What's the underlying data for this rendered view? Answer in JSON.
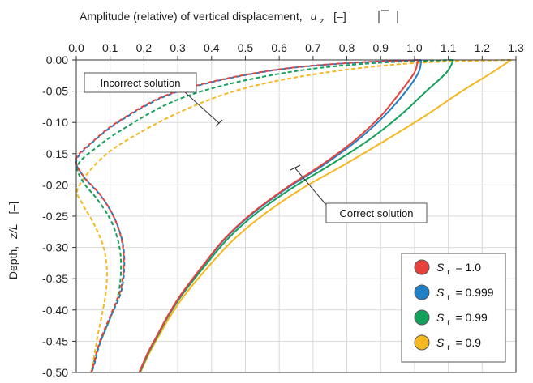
{
  "chart_data": {
    "type": "line",
    "title": "",
    "xlabel": "Amplitude (relative) of vertical displacement, |ū_z| [–]",
    "xlabel_parts": {
      "text": "Amplitude (relative) of vertical displacement,",
      "symbol": "u",
      "subscript": "z",
      "unit": "[–]"
    },
    "ylabel": "Depth, z/L [–]",
    "ylabel_parts": {
      "text": "Depth,",
      "symbol": "z/L",
      "unit": "[–]"
    },
    "xlim": [
      0.0,
      1.3
    ],
    "ylim": [
      -0.5,
      0.0
    ],
    "x_axis_position": "top",
    "grid": true,
    "x_ticks": [
      "0.0",
      "0.1",
      "0.2",
      "0.3",
      "0.4",
      "0.5",
      "0.6",
      "0.7",
      "0.8",
      "0.9",
      "1.0",
      "1.1",
      "1.2",
      "1.3"
    ],
    "y_ticks": [
      "0.00",
      "-0.05",
      "-0.10",
      "-0.15",
      "-0.20",
      "-0.25",
      "-0.30",
      "-0.35",
      "-0.40",
      "-0.45",
      "-0.50"
    ],
    "legend_position": "bottom-right",
    "series": [
      {
        "name": "S_r = 1.0",
        "label_symbol": "S",
        "label_sub": "r",
        "label_value": "= 1.0",
        "color": "#e8413c",
        "correct": {
          "x": [
            1.01,
            1.0,
            0.96,
            0.9,
            0.82,
            0.72,
            0.62,
            0.52,
            0.44,
            0.38,
            0.31,
            0.27,
            0.24,
            0.215,
            0.198,
            0.186
          ],
          "y": [
            0.0,
            -0.02,
            -0.05,
            -0.09,
            -0.13,
            -0.17,
            -0.205,
            -0.245,
            -0.285,
            -0.325,
            -0.375,
            -0.41,
            -0.44,
            -0.465,
            -0.485,
            -0.5
          ]
        },
        "incorrect": {
          "x": [
            1.01,
            0.8,
            0.6,
            0.4,
            0.25,
            0.12,
            0.05,
            0.0,
            0.02,
            0.07,
            0.11,
            0.135,
            0.14,
            0.13,
            0.1,
            0.07,
            0.055,
            0.045
          ],
          "y": [
            0.0,
            -0.005,
            -0.015,
            -0.035,
            -0.06,
            -0.1,
            -0.13,
            -0.158,
            -0.185,
            -0.215,
            -0.25,
            -0.29,
            -0.33,
            -0.37,
            -0.41,
            -0.45,
            -0.48,
            -0.5
          ]
        }
      },
      {
        "name": "S_r = 0.999",
        "label_symbol": "S",
        "label_sub": "r",
        "label_value": "= 0.999",
        "color": "#1f7fc7",
        "correct": {
          "x": [
            1.02,
            1.012,
            0.975,
            0.91,
            0.828,
            0.726,
            0.624,
            0.523,
            0.442,
            0.381,
            0.311,
            0.27,
            0.24,
            0.215,
            0.198,
            0.186
          ],
          "y": [
            0.0,
            -0.02,
            -0.05,
            -0.09,
            -0.13,
            -0.17,
            -0.205,
            -0.245,
            -0.285,
            -0.325,
            -0.375,
            -0.41,
            -0.44,
            -0.465,
            -0.485,
            -0.5
          ]
        },
        "incorrect": {
          "x": [
            1.02,
            0.81,
            0.605,
            0.405,
            0.255,
            0.123,
            0.052,
            0.001,
            0.022,
            0.072,
            0.112,
            0.137,
            0.142,
            0.132,
            0.101,
            0.071,
            0.056,
            0.046
          ],
          "y": [
            0.0,
            -0.005,
            -0.015,
            -0.035,
            -0.06,
            -0.1,
            -0.13,
            -0.16,
            -0.187,
            -0.217,
            -0.252,
            -0.292,
            -0.332,
            -0.372,
            -0.412,
            -0.452,
            -0.482,
            -0.5
          ]
        }
      },
      {
        "name": "S_r = 0.99",
        "label_symbol": "S",
        "label_sub": "r",
        "label_value": "= 0.99",
        "color": "#14a05b",
        "correct": {
          "x": [
            1.115,
            1.095,
            1.035,
            0.955,
            0.86,
            0.745,
            0.638,
            0.533,
            0.45,
            0.387,
            0.314,
            0.272,
            0.242,
            0.217,
            0.2,
            0.188
          ],
          "y": [
            0.0,
            -0.02,
            -0.05,
            -0.09,
            -0.13,
            -0.17,
            -0.205,
            -0.245,
            -0.285,
            -0.325,
            -0.375,
            -0.41,
            -0.44,
            -0.465,
            -0.485,
            -0.5
          ]
        },
        "incorrect": {
          "x": [
            1.115,
            0.88,
            0.66,
            0.44,
            0.28,
            0.14,
            0.06,
            0.005,
            0.02,
            0.065,
            0.105,
            0.128,
            0.132,
            0.122,
            0.095,
            0.068,
            0.053,
            0.044
          ],
          "y": [
            0.0,
            -0.005,
            -0.017,
            -0.04,
            -0.068,
            -0.11,
            -0.14,
            -0.168,
            -0.195,
            -0.225,
            -0.26,
            -0.3,
            -0.34,
            -0.38,
            -0.42,
            -0.455,
            -0.482,
            -0.5
          ]
        }
      },
      {
        "name": "S_r = 0.9",
        "label_symbol": "S",
        "label_sub": "r",
        "label_value": "= 0.9",
        "color": "#f5b820",
        "correct": {
          "x": [
            1.285,
            1.23,
            1.14,
            1.03,
            0.91,
            0.785,
            0.67,
            0.56,
            0.47,
            0.4,
            0.322,
            0.278,
            0.246,
            0.22,
            0.202,
            0.19
          ],
          "y": [
            0.0,
            -0.02,
            -0.05,
            -0.09,
            -0.13,
            -0.17,
            -0.205,
            -0.245,
            -0.285,
            -0.325,
            -0.375,
            -0.41,
            -0.44,
            -0.465,
            -0.485,
            -0.5
          ]
        },
        "incorrect": {
          "x": [
            1.285,
            1.0,
            0.74,
            0.5,
            0.32,
            0.16,
            0.07,
            0.005,
            0.018,
            0.05,
            0.078,
            0.09,
            0.088,
            0.075,
            0.062,
            0.053,
            0.047,
            0.044
          ],
          "y": [
            0.0,
            -0.005,
            -0.02,
            -0.045,
            -0.08,
            -0.125,
            -0.16,
            -0.205,
            -0.23,
            -0.26,
            -0.295,
            -0.33,
            -0.37,
            -0.41,
            -0.445,
            -0.475,
            -0.49,
            -0.5
          ]
        }
      }
    ],
    "annotations": [
      {
        "text": "Incorrect solution",
        "point_x": 0.41,
        "point_y": -0.113
      },
      {
        "text": "Correct solution",
        "point_x": 0.64,
        "point_y": -0.188
      }
    ]
  }
}
